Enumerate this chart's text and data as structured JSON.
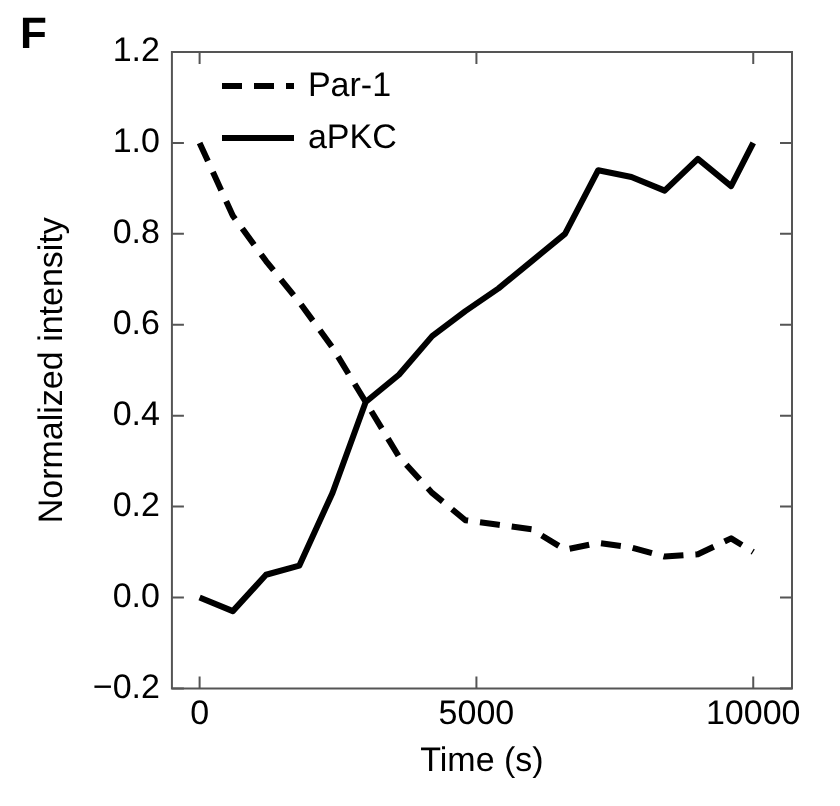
{
  "chart_data": {
    "type": "line",
    "xlabel": "Time (s)",
    "ylabel": "Normalized intensity",
    "annotations": [
      "F"
    ],
    "x": [
      0,
      600,
      1200,
      1800,
      2400,
      3000,
      3600,
      4200,
      4800,
      5400,
      6000,
      6600,
      7200,
      7800,
      8400,
      9000,
      9600,
      10000
    ],
    "series": [
      {
        "name": "Par-1",
        "color": "#000000",
        "line_style": "dashed",
        "values": [
          1.0,
          0.84,
          0.74,
          0.65,
          0.55,
          0.43,
          0.31,
          0.23,
          0.17,
          0.16,
          0.15,
          0.105,
          0.12,
          0.11,
          0.09,
          0.095,
          0.13,
          0.1
        ]
      },
      {
        "name": "aPKC",
        "color": "#000000",
        "line_style": "solid",
        "values": [
          0,
          -0.03,
          0.05,
          0.07,
          0.23,
          0.43,
          0.49,
          0.575,
          0.63,
          0.68,
          0.74,
          0.8,
          0.94,
          0.925,
          0.895,
          0.965,
          0.905,
          1.0
        ]
      }
    ],
    "xlim": [
      -500,
      10700
    ],
    "xticks": [
      0,
      5000,
      10000
    ],
    "ylim": [
      -0.2,
      1.2
    ],
    "yticks": [
      {
        "value": -0.2,
        "label": "−0.2"
      },
      {
        "value": 0,
        "label": "0.0"
      },
      0.2,
      0.4,
      0.6,
      0.8,
      {
        "value": 1,
        "label": "1.0"
      },
      1.2
    ],
    "legend": "top left",
    "marker": "none",
    "grid": false
  }
}
